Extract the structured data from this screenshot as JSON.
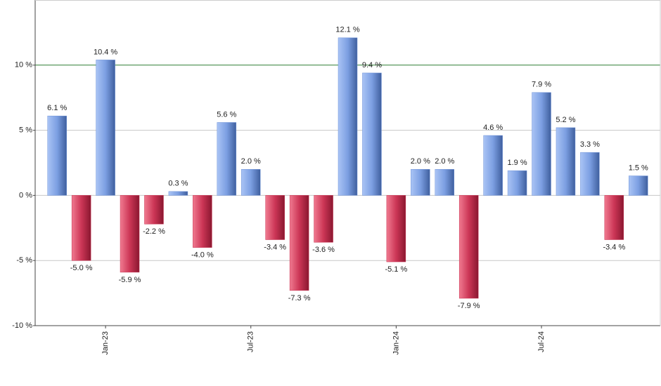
{
  "chart_data": {
    "type": "bar",
    "categories": [
      null,
      null,
      "Jan-23",
      null,
      null,
      null,
      null,
      null,
      "Jul-23",
      null,
      null,
      null,
      null,
      null,
      "Jan-24",
      null,
      null,
      null,
      null,
      null,
      "Jul-24",
      null,
      null,
      null,
      null
    ],
    "values": [
      6.1,
      -5.0,
      10.4,
      -5.9,
      -2.2,
      0.3,
      -4.0,
      5.6,
      2.0,
      -3.4,
      -7.3,
      -3.6,
      12.1,
      9.4,
      -5.1,
      2.0,
      2.0,
      -7.9,
      4.6,
      1.9,
      7.9,
      5.2,
      3.3,
      -3.4,
      1.5
    ],
    "value_labels": [
      "6.1 %",
      "-5.0 %",
      "10.4 %",
      "-5.9 %",
      "-2.2 %",
      "0.3 %",
      "-4.0 %",
      "5.6 %",
      "2.0 %",
      "-3.4 %",
      "-7.3 %",
      "-3.6 %",
      "12.1 %",
      "9.4 %",
      "-5.1 %",
      "2.0 %",
      "2.0 %",
      "-7.9 %",
      "4.6 %",
      "1.9 %",
      "7.9 %",
      "5.2 %",
      "3.3 %",
      "-3.4 %",
      "1.5 %"
    ],
    "color": "#6f93d8",
    "negative_color": "#c8304f",
    "ylim": [
      -10,
      15
    ],
    "yticks": [
      {
        "value": -10,
        "label": "-10 %"
      },
      {
        "value": -5,
        "label": "-5 %"
      },
      {
        "value": 0,
        "label": "0 %"
      },
      {
        "value": 5,
        "label": "5 %"
      },
      {
        "value": 10,
        "label": "10 %"
      }
    ],
    "grid": true,
    "reference_line": {
      "value": 10,
      "color": "#2e7d32"
    }
  }
}
